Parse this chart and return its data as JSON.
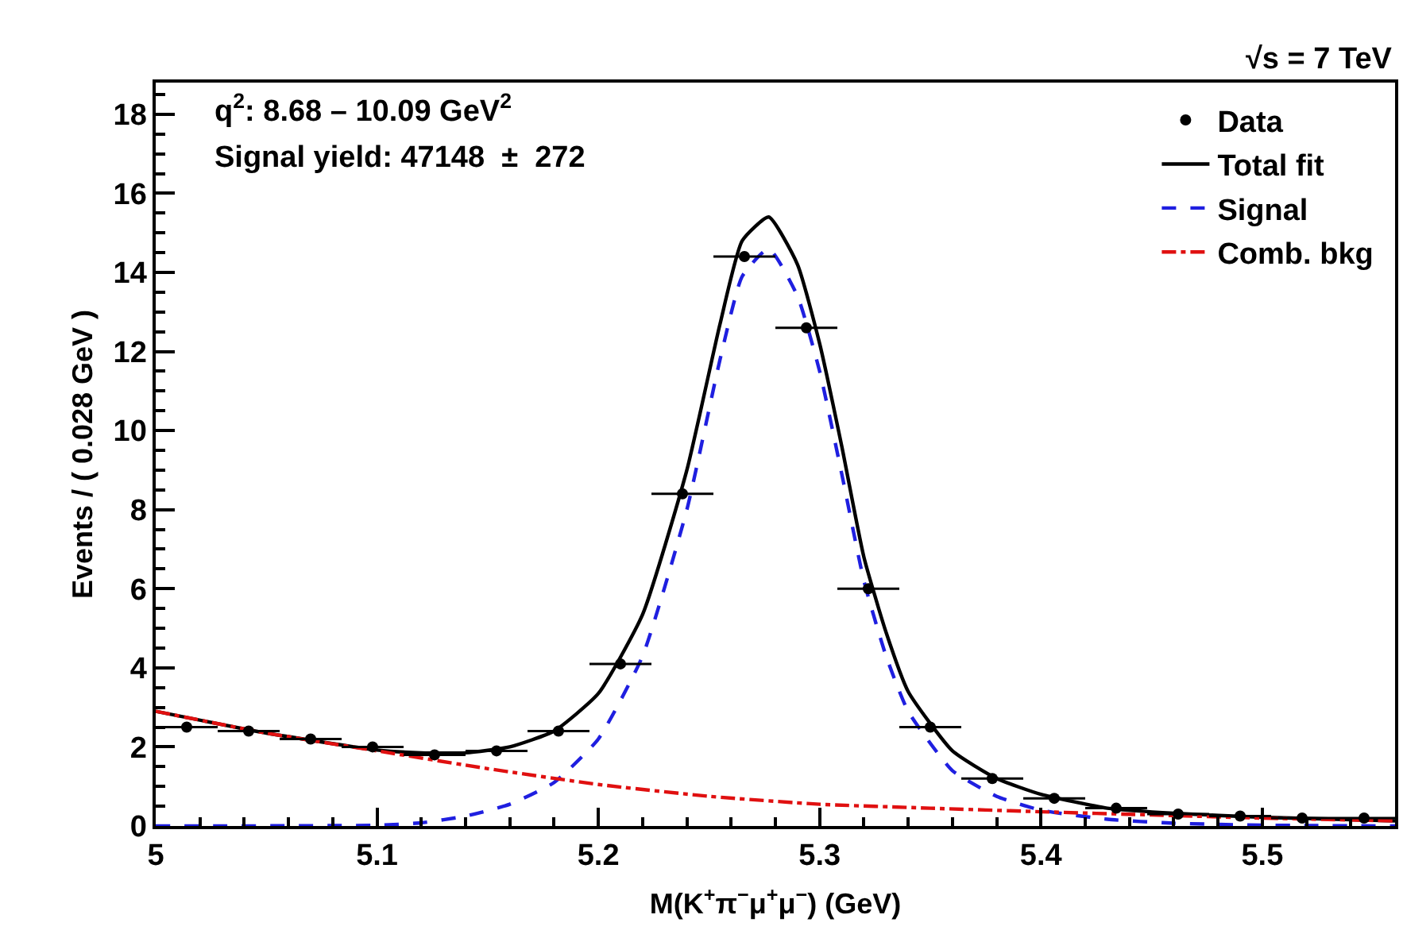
{
  "chart_data": {
    "type": "scatter",
    "xlabel": "M(K$^{+}$π$^{−}$μ$^{+}$μ$^{−}$) (GeV)",
    "ylabel": "Events / ( 0.028 GeV )",
    "annotations": [
      "√s = 7 TeV",
      "q$^{2}$: 8.68 – 10.09 GeV$^{2}$",
      "Signal yield: 47148  ±  272"
    ],
    "xlim": [
      5,
      5.56
    ],
    "xticks": [
      5,
      5.1,
      5.2,
      5.3,
      5.4,
      5.5
    ],
    "ylim": [
      0,
      18.8
    ],
    "yticks": [
      0,
      2,
      4,
      6,
      8,
      10,
      12,
      14,
      16,
      18
    ],
    "legend": "top right",
    "series": [
      {
        "name": "Data",
        "color": "#000000",
        "marker": "circle",
        "x": [
          5.014,
          5.042,
          5.07,
          5.098,
          5.126,
          5.154,
          5.182,
          5.21,
          5.238,
          5.266,
          5.294,
          5.322,
          5.35,
          5.378,
          5.406,
          5.434,
          5.462,
          5.49,
          5.518,
          5.546
        ],
        "values": [
          2.5,
          2.4,
          2.2,
          2.0,
          1.8,
          1.9,
          2.4,
          4.1,
          8.4,
          14.4,
          12.6,
          6.0,
          2.5,
          1.2,
          0.7,
          0.45,
          0.3,
          0.25,
          0.2,
          0.2
        ],
        "xerrors": [
          0.014,
          0.014,
          0.014,
          0.014,
          0.014,
          0.014,
          0.014,
          0.014,
          0.014,
          0.014,
          0.014,
          0.014,
          0.014,
          0.014,
          0.014,
          0.014,
          0.014,
          0.014,
          0.014,
          0.014
        ]
      },
      {
        "name": "Total fit",
        "type": "line",
        "color": "#000000",
        "line_style": "solid",
        "x": [
          5.0,
          5.05,
          5.1,
          5.12,
          5.14,
          5.16,
          5.18,
          5.2,
          5.22,
          5.24,
          5.255,
          5.265,
          5.277,
          5.29,
          5.3,
          5.31,
          5.32,
          5.33,
          5.34,
          5.36,
          5.38,
          5.4,
          5.43,
          5.46,
          5.5,
          5.56
        ],
        "values": [
          2.9,
          2.35,
          1.92,
          1.85,
          1.85,
          2.0,
          2.4,
          3.35,
          5.35,
          9.0,
          12.7,
          14.8,
          15.4,
          14.2,
          12.2,
          9.6,
          6.8,
          4.9,
          3.4,
          1.9,
          1.2,
          0.8,
          0.45,
          0.32,
          0.22,
          0.13
        ]
      },
      {
        "name": "Signal",
        "type": "line",
        "color": "#1f1fe0",
        "line_style": "dashed",
        "x": [
          5.0,
          5.1,
          5.12,
          5.14,
          5.16,
          5.18,
          5.2,
          5.22,
          5.24,
          5.255,
          5.265,
          5.277,
          5.29,
          5.3,
          5.31,
          5.32,
          5.33,
          5.34,
          5.36,
          5.38,
          5.4,
          5.43,
          5.46,
          5.5,
          5.56
        ],
        "values": [
          0,
          0.02,
          0.08,
          0.25,
          0.55,
          1.1,
          2.2,
          4.3,
          8.0,
          11.8,
          13.9,
          14.6,
          13.4,
          11.5,
          8.9,
          6.2,
          4.3,
          2.9,
          1.4,
          0.75,
          0.4,
          0.17,
          0.07,
          0.02,
          0
        ]
      },
      {
        "name": "Comb. bkg",
        "type": "line",
        "color": "#e01010",
        "line_style": "dotted",
        "x": [
          5.0,
          5.05,
          5.1,
          5.15,
          5.2,
          5.25,
          5.3,
          5.35,
          5.4,
          5.45,
          5.5,
          5.56
        ],
        "values": [
          2.9,
          2.35,
          1.9,
          1.45,
          1.05,
          0.75,
          0.55,
          0.45,
          0.36,
          0.28,
          0.2,
          0.13
        ]
      }
    ]
  }
}
